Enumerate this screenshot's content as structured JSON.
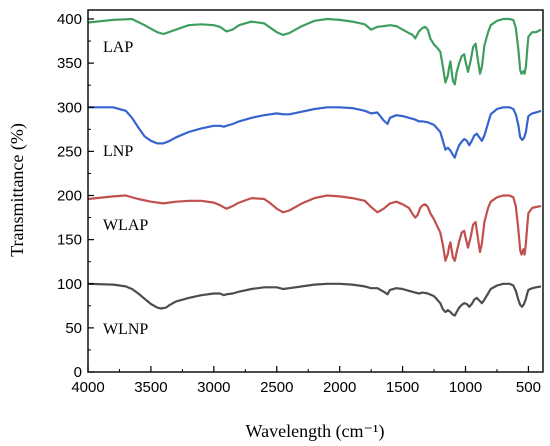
{
  "chart_data": {
    "type": "line",
    "title": "",
    "xlabel": "Wavelength (cm⁻¹)",
    "ylabel": "Transmittance (%)",
    "xlim": [
      4000,
      400
    ],
    "ylim": [
      0,
      410
    ],
    "x_reversed": true,
    "grid": false,
    "legend": "none",
    "xticks": [
      4000,
      3500,
      3000,
      2500,
      2000,
      1500,
      1000,
      500
    ],
    "yticks": [
      0,
      50,
      100,
      150,
      200,
      250,
      300,
      350,
      400
    ],
    "series": [
      {
        "name": "LAP",
        "color": "#3f9e5f",
        "points": [
          [
            4000,
            396
          ],
          [
            3800,
            399
          ],
          [
            3650,
            400
          ],
          [
            3550,
            393
          ],
          [
            3450,
            385
          ],
          [
            3400,
            383
          ],
          [
            3300,
            388
          ],
          [
            3200,
            393
          ],
          [
            3100,
            394
          ],
          [
            3000,
            393
          ],
          [
            2950,
            391
          ],
          [
            2900,
            386
          ],
          [
            2850,
            388
          ],
          [
            2800,
            393
          ],
          [
            2700,
            397
          ],
          [
            2600,
            395
          ],
          [
            2550,
            390
          ],
          [
            2500,
            385
          ],
          [
            2450,
            382
          ],
          [
            2400,
            384
          ],
          [
            2300,
            392
          ],
          [
            2200,
            398
          ],
          [
            2100,
            400
          ],
          [
            2000,
            399
          ],
          [
            1900,
            397
          ],
          [
            1800,
            394
          ],
          [
            1750,
            388
          ],
          [
            1700,
            391
          ],
          [
            1650,
            392
          ],
          [
            1600,
            393
          ],
          [
            1550,
            392
          ],
          [
            1500,
            388
          ],
          [
            1450,
            384
          ],
          [
            1420,
            382
          ],
          [
            1400,
            378
          ],
          [
            1370,
            386
          ],
          [
            1340,
            390
          ],
          [
            1320,
            391
          ],
          [
            1300,
            388
          ],
          [
            1280,
            378
          ],
          [
            1250,
            371
          ],
          [
            1230,
            368
          ],
          [
            1200,
            363
          ],
          [
            1180,
            346
          ],
          [
            1160,
            328
          ],
          [
            1140,
            336
          ],
          [
            1130,
            345
          ],
          [
            1120,
            352
          ],
          [
            1100,
            330
          ],
          [
            1085,
            326
          ],
          [
            1070,
            340
          ],
          [
            1050,
            350
          ],
          [
            1030,
            358
          ],
          [
            1010,
            360
          ],
          [
            1000,
            352
          ],
          [
            980,
            340
          ],
          [
            960,
            352
          ],
          [
            940,
            368
          ],
          [
            920,
            372
          ],
          [
            900,
            352
          ],
          [
            885,
            338
          ],
          [
            870,
            346
          ],
          [
            850,
            370
          ],
          [
            820,
            385
          ],
          [
            800,
            393
          ],
          [
            750,
            398
          ],
          [
            700,
            400
          ],
          [
            650,
            400
          ],
          [
            620,
            399
          ],
          [
            600,
            390
          ],
          [
            580,
            366
          ],
          [
            565,
            342
          ],
          [
            555,
            338
          ],
          [
            540,
            341
          ],
          [
            530,
            338
          ],
          [
            520,
            346
          ],
          [
            510,
            365
          ],
          [
            500,
            380
          ],
          [
            470,
            385
          ],
          [
            440,
            385
          ],
          [
            400,
            388
          ]
        ]
      },
      {
        "name": "LNP",
        "color": "#3565cc",
        "points": [
          [
            4000,
            300
          ],
          [
            3800,
            300
          ],
          [
            3700,
            296
          ],
          [
            3650,
            288
          ],
          [
            3600,
            277
          ],
          [
            3550,
            267
          ],
          [
            3500,
            262
          ],
          [
            3450,
            259
          ],
          [
            3400,
            259
          ],
          [
            3350,
            262
          ],
          [
            3300,
            266
          ],
          [
            3200,
            272
          ],
          [
            3100,
            276
          ],
          [
            3000,
            279
          ],
          [
            2950,
            279
          ],
          [
            2920,
            278
          ],
          [
            2900,
            279
          ],
          [
            2850,
            281
          ],
          [
            2800,
            284
          ],
          [
            2700,
            288
          ],
          [
            2600,
            291
          ],
          [
            2500,
            293
          ],
          [
            2450,
            292
          ],
          [
            2400,
            292
          ],
          [
            2300,
            295
          ],
          [
            2200,
            298
          ],
          [
            2100,
            300
          ],
          [
            2000,
            300
          ],
          [
            1900,
            299
          ],
          [
            1800,
            296
          ],
          [
            1750,
            293
          ],
          [
            1700,
            294
          ],
          [
            1650,
            285
          ],
          [
            1620,
            281
          ],
          [
            1600,
            288
          ],
          [
            1550,
            291
          ],
          [
            1500,
            290
          ],
          [
            1450,
            288
          ],
          [
            1400,
            286
          ],
          [
            1370,
            284
          ],
          [
            1340,
            284
          ],
          [
            1300,
            283
          ],
          [
            1250,
            280
          ],
          [
            1200,
            272
          ],
          [
            1180,
            262
          ],
          [
            1160,
            252
          ],
          [
            1140,
            254
          ],
          [
            1120,
            251
          ],
          [
            1100,
            246
          ],
          [
            1085,
            243
          ],
          [
            1070,
            250
          ],
          [
            1050,
            257
          ],
          [
            1030,
            261
          ],
          [
            1010,
            264
          ],
          [
            990,
            262
          ],
          [
            970,
            257
          ],
          [
            950,
            262
          ],
          [
            930,
            268
          ],
          [
            910,
            270
          ],
          [
            890,
            266
          ],
          [
            870,
            262
          ],
          [
            850,
            268
          ],
          [
            820,
            282
          ],
          [
            800,
            292
          ],
          [
            750,
            298
          ],
          [
            700,
            300
          ],
          [
            650,
            300
          ],
          [
            620,
            298
          ],
          [
            600,
            292
          ],
          [
            580,
            280
          ],
          [
            565,
            266
          ],
          [
            550,
            263
          ],
          [
            535,
            265
          ],
          [
            520,
            272
          ],
          [
            510,
            282
          ],
          [
            500,
            290
          ],
          [
            470,
            293
          ],
          [
            440,
            294
          ],
          [
            400,
            296
          ]
        ]
      },
      {
        "name": "WLAP",
        "color": "#c0504d",
        "points": [
          [
            4000,
            196
          ],
          [
            3800,
            199
          ],
          [
            3700,
            200
          ],
          [
            3600,
            196
          ],
          [
            3500,
            193
          ],
          [
            3400,
            191
          ],
          [
            3300,
            193
          ],
          [
            3200,
            194
          ],
          [
            3100,
            194
          ],
          [
            3000,
            192
          ],
          [
            2950,
            189
          ],
          [
            2900,
            185
          ],
          [
            2850,
            188
          ],
          [
            2800,
            192
          ],
          [
            2700,
            197
          ],
          [
            2600,
            196
          ],
          [
            2550,
            191
          ],
          [
            2500,
            185
          ],
          [
            2450,
            181
          ],
          [
            2400,
            183
          ],
          [
            2300,
            191
          ],
          [
            2200,
            197
          ],
          [
            2100,
            200
          ],
          [
            2000,
            199
          ],
          [
            1900,
            197
          ],
          [
            1800,
            194
          ],
          [
            1750,
            187
          ],
          [
            1700,
            181
          ],
          [
            1650,
            185
          ],
          [
            1600,
            191
          ],
          [
            1550,
            193
          ],
          [
            1500,
            190
          ],
          [
            1450,
            186
          ],
          [
            1420,
            179
          ],
          [
            1400,
            175
          ],
          [
            1380,
            178
          ],
          [
            1360,
            186
          ],
          [
            1340,
            189
          ],
          [
            1320,
            190
          ],
          [
            1300,
            187
          ],
          [
            1280,
            180
          ],
          [
            1250,
            173
          ],
          [
            1220,
            164
          ],
          [
            1200,
            158
          ],
          [
            1180,
            144
          ],
          [
            1160,
            126
          ],
          [
            1140,
            134
          ],
          [
            1130,
            142
          ],
          [
            1120,
            147
          ],
          [
            1100,
            130
          ],
          [
            1085,
            126
          ],
          [
            1070,
            136
          ],
          [
            1050,
            148
          ],
          [
            1030,
            158
          ],
          [
            1010,
            160
          ],
          [
            1000,
            153
          ],
          [
            980,
            141
          ],
          [
            960,
            152
          ],
          [
            940,
            167
          ],
          [
            920,
            170
          ],
          [
            900,
            150
          ],
          [
            885,
            136
          ],
          [
            870,
            146
          ],
          [
            850,
            170
          ],
          [
            820,
            186
          ],
          [
            800,
            193
          ],
          [
            750,
            198
          ],
          [
            700,
            200
          ],
          [
            650,
            200
          ],
          [
            620,
            198
          ],
          [
            600,
            188
          ],
          [
            580,
            162
          ],
          [
            565,
            138
          ],
          [
            555,
            133
          ],
          [
            540,
            139
          ],
          [
            530,
            133
          ],
          [
            520,
            146
          ],
          [
            510,
            165
          ],
          [
            500,
            180
          ],
          [
            470,
            186
          ],
          [
            440,
            187
          ],
          [
            400,
            188
          ]
        ]
      },
      {
        "name": "WLNP",
        "color": "#4d4d4d",
        "points": [
          [
            4000,
            100
          ],
          [
            3800,
            99
          ],
          [
            3700,
            97
          ],
          [
            3650,
            94
          ],
          [
            3600,
            89
          ],
          [
            3550,
            83
          ],
          [
            3500,
            77
          ],
          [
            3450,
            73
          ],
          [
            3420,
            72
          ],
          [
            3380,
            73
          ],
          [
            3350,
            76
          ],
          [
            3300,
            80
          ],
          [
            3200,
            84
          ],
          [
            3100,
            87
          ],
          [
            3000,
            89
          ],
          [
            2950,
            89
          ],
          [
            2920,
            87
          ],
          [
            2900,
            88
          ],
          [
            2850,
            89
          ],
          [
            2800,
            91
          ],
          [
            2700,
            94
          ],
          [
            2600,
            96
          ],
          [
            2500,
            96
          ],
          [
            2450,
            94
          ],
          [
            2400,
            95
          ],
          [
            2300,
            97
          ],
          [
            2200,
            99
          ],
          [
            2100,
            100
          ],
          [
            2000,
            100
          ],
          [
            1900,
            99
          ],
          [
            1800,
            97
          ],
          [
            1750,
            95
          ],
          [
            1700,
            95
          ],
          [
            1650,
            91
          ],
          [
            1620,
            88
          ],
          [
            1600,
            93
          ],
          [
            1550,
            95
          ],
          [
            1500,
            94
          ],
          [
            1450,
            92
          ],
          [
            1400,
            90
          ],
          [
            1370,
            89
          ],
          [
            1340,
            90
          ],
          [
            1300,
            89
          ],
          [
            1250,
            86
          ],
          [
            1200,
            78
          ],
          [
            1180,
            71
          ],
          [
            1160,
            68
          ],
          [
            1140,
            70
          ],
          [
            1120,
            68
          ],
          [
            1100,
            65
          ],
          [
            1085,
            64
          ],
          [
            1070,
            68
          ],
          [
            1050,
            73
          ],
          [
            1030,
            76
          ],
          [
            1010,
            78
          ],
          [
            990,
            77
          ],
          [
            970,
            74
          ],
          [
            950,
            77
          ],
          [
            930,
            82
          ],
          [
            910,
            84
          ],
          [
            890,
            81
          ],
          [
            870,
            78
          ],
          [
            850,
            82
          ],
          [
            820,
            89
          ],
          [
            800,
            94
          ],
          [
            750,
            98
          ],
          [
            700,
            100
          ],
          [
            650,
            100
          ],
          [
            620,
            98
          ],
          [
            600,
            92
          ],
          [
            580,
            82
          ],
          [
            565,
            76
          ],
          [
            550,
            74
          ],
          [
            535,
            77
          ],
          [
            520,
            83
          ],
          [
            510,
            89
          ],
          [
            500,
            93
          ],
          [
            470,
            95
          ],
          [
            440,
            96
          ],
          [
            400,
            97
          ]
        ]
      }
    ]
  },
  "labels": {
    "series_label_lap": "LAP",
    "series_label_lnp": "LNP",
    "series_label_wlap": "WLAP",
    "series_label_wlnp": "WLNP"
  }
}
